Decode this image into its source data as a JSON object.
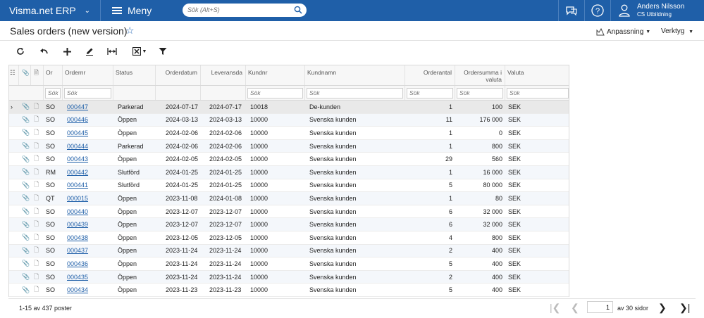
{
  "app": {
    "title": "Visma.net ERP",
    "menu_label": "Meny"
  },
  "search": {
    "placeholder": "Sök (Alt+S)"
  },
  "user": {
    "name": "Anders Nilsson",
    "org": "CS Utbildning"
  },
  "page": {
    "title": "Sales orders (new version)"
  },
  "actions": {
    "customize_label": "Anpassning",
    "tools_label": "Verktyg"
  },
  "toolbar": {
    "icons": [
      "refresh-icon",
      "undo-icon",
      "add-icon",
      "edit-icon",
      "fit-columns-icon",
      "export-excel-icon",
      "filter-icon"
    ]
  },
  "grid": {
    "headers": [
      "Or",
      "Ordernr",
      "Status",
      "Orderdatum",
      "Leveransda",
      "Kundnr",
      "Kundnamn",
      "Orderantal",
      "Ordersumma i valuta",
      "Valuta"
    ],
    "filter_placeholder": "Sök",
    "rows": [
      {
        "type": "SO",
        "nr": "000447",
        "status": "Parkerad",
        "odate": "2024-07-17",
        "ldate": "2024-07-17",
        "kundnr": "10018",
        "kundnamn": "De-kunden",
        "antal": "1",
        "summa": "100",
        "valuta": "SEK"
      },
      {
        "type": "SO",
        "nr": "000446",
        "status": "Öppen",
        "odate": "2024-03-13",
        "ldate": "2024-03-13",
        "kundnr": "10000",
        "kundnamn": "Svenska kunden",
        "antal": "11",
        "summa": "176 000",
        "valuta": "SEK"
      },
      {
        "type": "SO",
        "nr": "000445",
        "status": "Öppen",
        "odate": "2024-02-06",
        "ldate": "2024-02-06",
        "kundnr": "10000",
        "kundnamn": "Svenska kunden",
        "antal": "1",
        "summa": "0",
        "valuta": "SEK"
      },
      {
        "type": "SO",
        "nr": "000444",
        "status": "Parkerad",
        "odate": "2024-02-06",
        "ldate": "2024-02-06",
        "kundnr": "10000",
        "kundnamn": "Svenska kunden",
        "antal": "1",
        "summa": "800",
        "valuta": "SEK"
      },
      {
        "type": "SO",
        "nr": "000443",
        "status": "Öppen",
        "odate": "2024-02-05",
        "ldate": "2024-02-05",
        "kundnr": "10000",
        "kundnamn": "Svenska kunden",
        "antal": "29",
        "summa": "560",
        "valuta": "SEK"
      },
      {
        "type": "RM",
        "nr": "000442",
        "status": "Slutförd",
        "odate": "2024-01-25",
        "ldate": "2024-01-25",
        "kundnr": "10000",
        "kundnamn": "Svenska kunden",
        "antal": "1",
        "summa": "16 000",
        "valuta": "SEK"
      },
      {
        "type": "SO",
        "nr": "000441",
        "status": "Slutförd",
        "odate": "2024-01-25",
        "ldate": "2024-01-25",
        "kundnr": "10000",
        "kundnamn": "Svenska kunden",
        "antal": "5",
        "summa": "80 000",
        "valuta": "SEK"
      },
      {
        "type": "QT",
        "nr": "000015",
        "status": "Öppen",
        "odate": "2023-11-08",
        "ldate": "2024-01-08",
        "kundnr": "10000",
        "kundnamn": "Svenska kunden",
        "antal": "1",
        "summa": "80",
        "valuta": "SEK"
      },
      {
        "type": "SO",
        "nr": "000440",
        "status": "Öppen",
        "odate": "2023-12-07",
        "ldate": "2023-12-07",
        "kundnr": "10000",
        "kundnamn": "Svenska kunden",
        "antal": "6",
        "summa": "32 000",
        "valuta": "SEK"
      },
      {
        "type": "SO",
        "nr": "000439",
        "status": "Öppen",
        "odate": "2023-12-07",
        "ldate": "2023-12-07",
        "kundnr": "10000",
        "kundnamn": "Svenska kunden",
        "antal": "6",
        "summa": "32 000",
        "valuta": "SEK"
      },
      {
        "type": "SO",
        "nr": "000438",
        "status": "Öppen",
        "odate": "2023-12-05",
        "ldate": "2023-12-05",
        "kundnr": "10000",
        "kundnamn": "Svenska kunden",
        "antal": "4",
        "summa": "800",
        "valuta": "SEK"
      },
      {
        "type": "SO",
        "nr": "000437",
        "status": "Öppen",
        "odate": "2023-11-24",
        "ldate": "2023-11-24",
        "kundnr": "10000",
        "kundnamn": "Svenska kunden",
        "antal": "2",
        "summa": "400",
        "valuta": "SEK"
      },
      {
        "type": "SO",
        "nr": "000436",
        "status": "Öppen",
        "odate": "2023-11-24",
        "ldate": "2023-11-24",
        "kundnr": "10000",
        "kundnamn": "Svenska kunden",
        "antal": "5",
        "summa": "400",
        "valuta": "SEK"
      },
      {
        "type": "SO",
        "nr": "000435",
        "status": "Öppen",
        "odate": "2023-11-24",
        "ldate": "2023-11-24",
        "kundnr": "10000",
        "kundnamn": "Svenska kunden",
        "antal": "2",
        "summa": "400",
        "valuta": "SEK"
      },
      {
        "type": "SO",
        "nr": "000434",
        "status": "Öppen",
        "odate": "2023-11-23",
        "ldate": "2023-11-23",
        "kundnr": "10000",
        "kundnamn": "Svenska kunden",
        "antal": "5",
        "summa": "400",
        "valuta": "SEK"
      }
    ]
  },
  "footer": {
    "count": "1-15 av 437 poster",
    "page": "1",
    "of_pages": "av 30 sidor"
  },
  "colors": {
    "topbar": "#1f5fa8",
    "link": "#1f5fa8"
  }
}
